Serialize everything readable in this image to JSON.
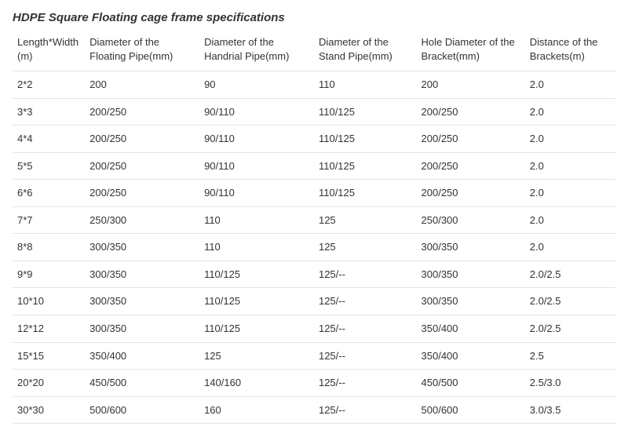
{
  "title": "HDPE Square Floating cage frame specifications",
  "table": {
    "columns": [
      "Length*Width(m)",
      "Diameter of the Floating Pipe(mm)",
      "Diameter of the Handrial Pipe(mm)",
      "Diameter of the Stand Pipe(mm)",
      "Hole Diameter of the Bracket(mm)",
      "Distance of the Brackets(m)"
    ],
    "column_widths_pct": [
      12,
      19,
      19,
      17,
      18,
      15
    ],
    "rows": [
      [
        "2*2",
        "200",
        "90",
        "110",
        "200",
        "2.0"
      ],
      [
        "3*3",
        "200/250",
        "90/110",
        "110/125",
        "200/250",
        "2.0"
      ],
      [
        "4*4",
        "200/250",
        "90/110",
        "110/125",
        "200/250",
        "2.0"
      ],
      [
        "5*5",
        "200/250",
        "90/110",
        "110/125",
        "200/250",
        "2.0"
      ],
      [
        "6*6",
        "200/250",
        "90/110",
        "110/125",
        "200/250",
        "2.0"
      ],
      [
        "7*7",
        "250/300",
        "110",
        "125",
        "250/300",
        "2.0"
      ],
      [
        "8*8",
        "300/350",
        "110",
        "125",
        "300/350",
        "2.0"
      ],
      [
        "9*9",
        "300/350",
        "110/125",
        "125/--",
        "300/350",
        "2.0/2.5"
      ],
      [
        "10*10",
        "300/350",
        "110/125",
        "125/--",
        "300/350",
        "2.0/2.5"
      ],
      [
        "12*12",
        "300/350",
        "110/125",
        "125/--",
        "350/400",
        "2.0/2.5"
      ],
      [
        "15*15",
        "350/400",
        "125",
        "125/--",
        "350/400",
        "2.5"
      ],
      [
        "20*20",
        "450/500",
        "140/160",
        "125/--",
        "450/500",
        "2.5/3.0"
      ],
      [
        "30*30",
        "500/600",
        "160",
        "125/--",
        "500/600",
        "3.0/3.5"
      ]
    ],
    "header_fontsize": 13,
    "cell_fontsize": 13,
    "text_color": "#333333",
    "border_color": "#e5e5e5",
    "background_color": "#ffffff"
  }
}
